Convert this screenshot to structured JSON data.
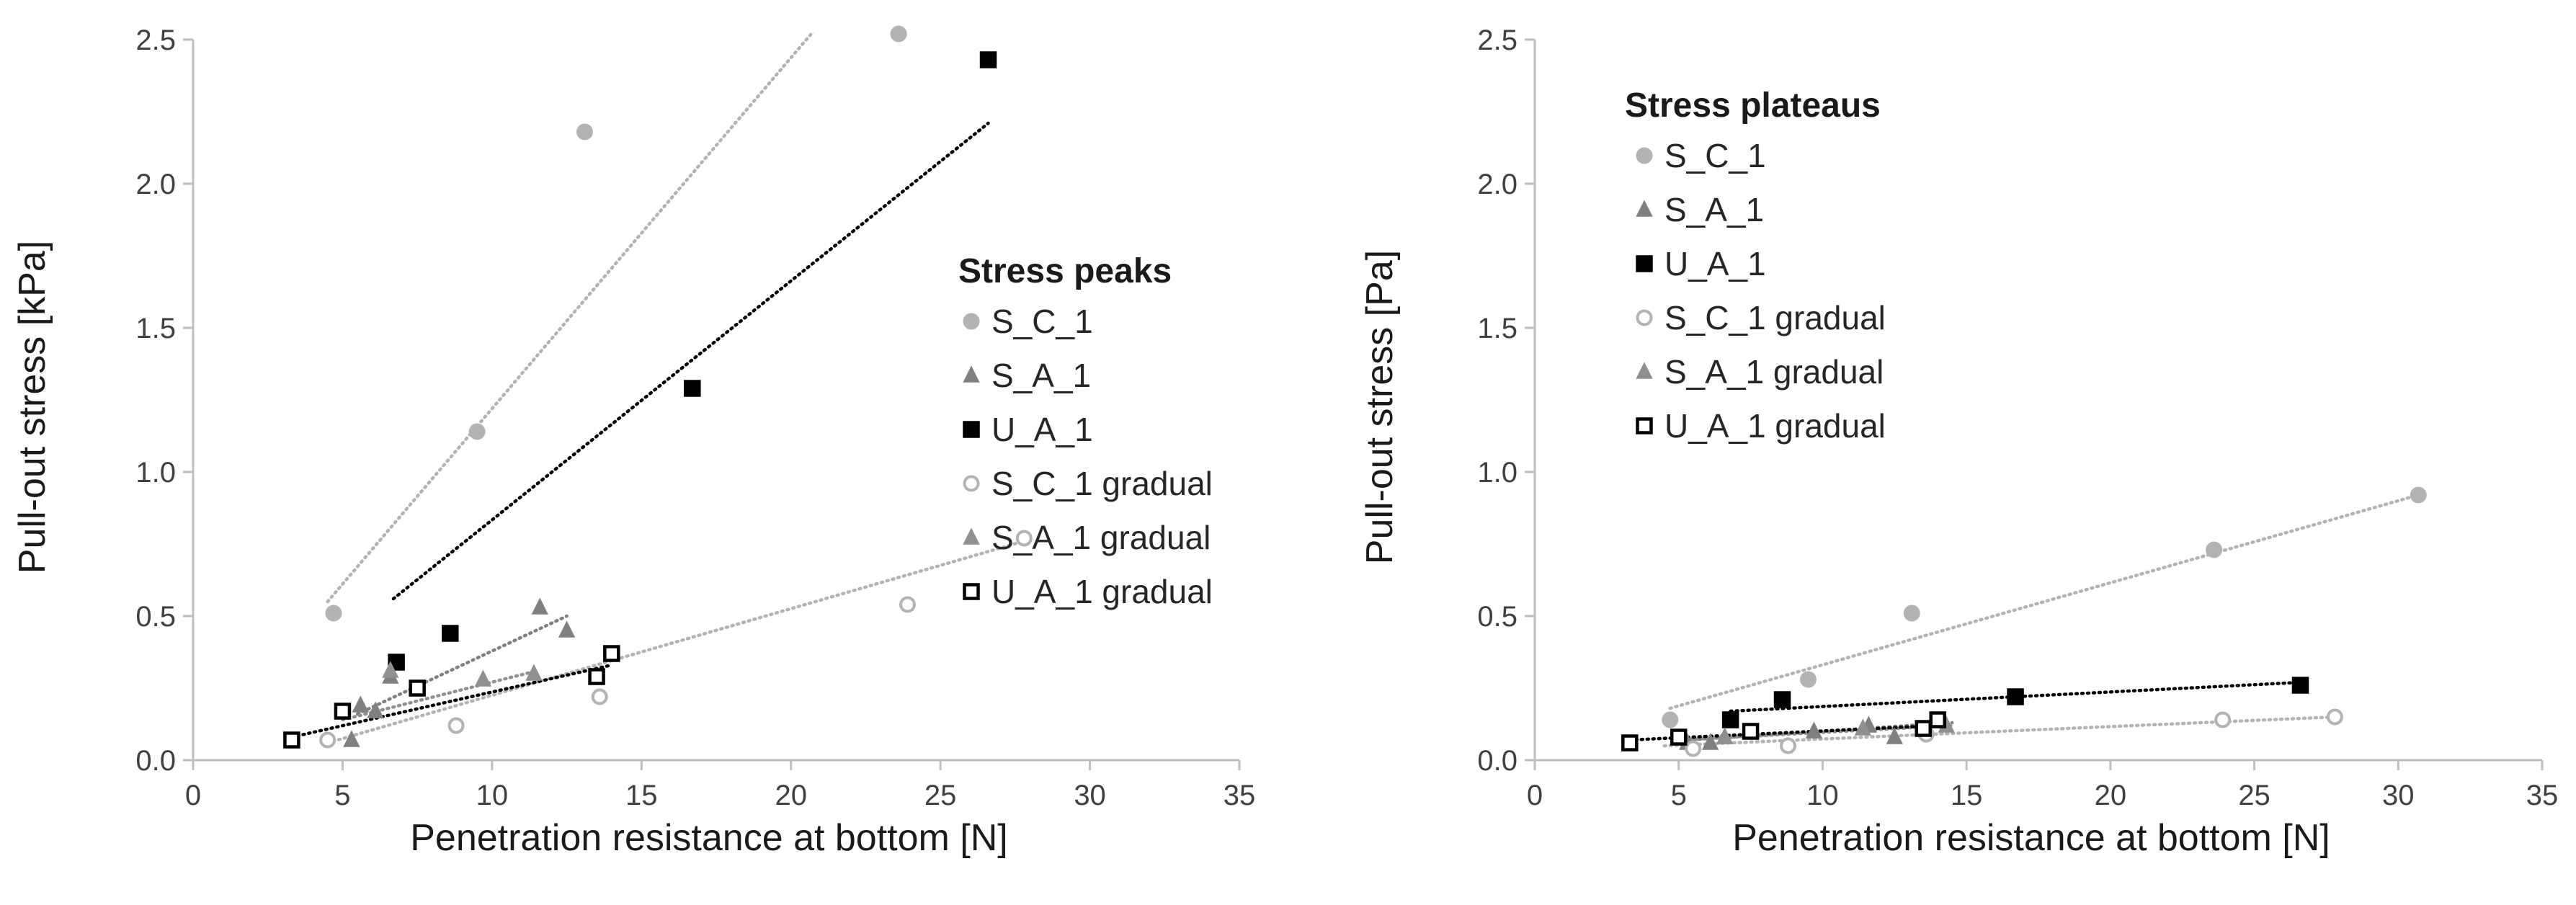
{
  "chart_data": [
    {
      "type": "scatter",
      "title": "Stress peaks",
      "xlabel": "Penetration resistance at bottom [N]",
      "ylabel": "Pull-out stress [kPa]",
      "xlim": [
        0,
        35
      ],
      "ylim": [
        0,
        2.5
      ],
      "xticks": [
        "0",
        "5",
        "10",
        "15",
        "20",
        "25",
        "30",
        "35"
      ],
      "yticks": [
        "0.0",
        "0.5",
        "1.0",
        "1.5",
        "2.0",
        "2.5"
      ],
      "legend_position": "right",
      "series": [
        {
          "name": "S_C_1",
          "marker": "circle",
          "fill": "#b3b3b3",
          "stroke": "#b3b3b3",
          "x": [
            4.7,
            9.5,
            13.1,
            23.6
          ],
          "y": [
            0.51,
            1.14,
            2.18,
            2.52
          ],
          "trend": {
            "x": [
              4.5,
              21.5
            ],
            "y": [
              0.55,
              2.62
            ],
            "color": "#b3b3b3"
          }
        },
        {
          "name": "S_A_1",
          "marker": "triangle",
          "fill": "#808080",
          "stroke": "#808080",
          "x": [
            5.3,
            5.6,
            6.1,
            6.6,
            11.6,
            12.5
          ],
          "y": [
            0.07,
            0.19,
            0.17,
            0.29,
            0.53,
            0.45
          ],
          "trend": {
            "x": [
              5.5,
              12.5
            ],
            "y": [
              0.16,
              0.5
            ],
            "color": "#808080"
          }
        },
        {
          "name": "U_A_1",
          "marker": "square",
          "fill": "#000000",
          "stroke": "#000000",
          "x": [
            6.8,
            8.6,
            16.7,
            26.6
          ],
          "y": [
            0.34,
            0.44,
            1.29,
            2.43
          ],
          "trend": {
            "x": [
              6.7,
              26.6
            ],
            "y": [
              0.56,
              2.21
            ],
            "color": "#000000"
          }
        },
        {
          "name": "S_C_1 gradual",
          "marker": "circle-open",
          "fill": "#ffffff",
          "stroke": "#b3b3b3",
          "x": [
            4.5,
            8.8,
            13.6,
            23.9,
            27.8
          ],
          "y": [
            0.07,
            0.12,
            0.22,
            0.54,
            0.77
          ],
          "trend": {
            "x": [
              4.5,
              27.8
            ],
            "y": [
              0.06,
              0.76
            ],
            "color": "#b3b3b3"
          }
        },
        {
          "name": "S_A_1 gradual",
          "marker": "triangle",
          "fill": "#909090",
          "stroke": "#909090",
          "x": [
            6.6,
            9.7,
            11.4
          ],
          "y": [
            0.31,
            0.28,
            0.3
          ],
          "trend": {
            "x": [
              5.0,
              11.5
            ],
            "y": [
              0.14,
              0.31
            ],
            "color": "#909090"
          }
        },
        {
          "name": "U_A_1 gradual",
          "marker": "square-open",
          "fill": "#ffffff",
          "stroke": "#000000",
          "x": [
            3.3,
            5.0,
            7.5,
            13.5,
            14.0
          ],
          "y": [
            0.07,
            0.17,
            0.25,
            0.29,
            0.37
          ],
          "trend": {
            "x": [
              3.3,
              14.0
            ],
            "y": [
              0.08,
              0.33
            ],
            "color": "#000000"
          }
        }
      ]
    },
    {
      "type": "scatter",
      "title": "Stress plateaus",
      "xlabel": "Penetration resistance at bottom [N]",
      "ylabel": "Pull-out stress [Pa]",
      "xlim": [
        0,
        35
      ],
      "ylim": [
        0,
        2.5
      ],
      "xticks": [
        "0",
        "5",
        "10",
        "15",
        "20",
        "25",
        "30",
        "35"
      ],
      "yticks": [
        "0.0",
        "0.5",
        "1.0",
        "1.5",
        "2.0",
        "2.5"
      ],
      "legend_position": "top-left",
      "series": [
        {
          "name": "S_C_1",
          "marker": "circle",
          "fill": "#b3b3b3",
          "stroke": "#b3b3b3",
          "x": [
            4.7,
            9.5,
            13.1,
            23.6,
            30.7
          ],
          "y": [
            0.14,
            0.28,
            0.51,
            0.73,
            0.92
          ],
          "trend": {
            "x": [
              4.7,
              30.7
            ],
            "y": [
              0.18,
              0.92
            ],
            "color": "#b3b3b3"
          }
        },
        {
          "name": "S_A_1",
          "marker": "triangle",
          "fill": "#808080",
          "stroke": "#808080",
          "x": [
            5.3,
            6.1,
            6.6,
            9.7,
            11.6,
            12.5
          ],
          "y": [
            0.06,
            0.06,
            0.08,
            0.1,
            0.12,
            0.08
          ],
          "trend": {
            "x": [
              5.3,
              14.5
            ],
            "y": [
              0.07,
              0.13
            ],
            "color": "#808080"
          }
        },
        {
          "name": "U_A_1",
          "marker": "square",
          "fill": "#000000",
          "stroke": "#000000",
          "x": [
            6.8,
            8.6,
            16.7,
            26.6
          ],
          "y": [
            0.14,
            0.21,
            0.22,
            0.26
          ],
          "trend": {
            "x": [
              6.8,
              26.6
            ],
            "y": [
              0.17,
              0.27
            ],
            "color": "#000000"
          }
        },
        {
          "name": "S_C_1 gradual",
          "marker": "circle-open",
          "fill": "#ffffff",
          "stroke": "#b3b3b3",
          "x": [
            5.5,
            8.8,
            13.6,
            23.9,
            27.8
          ],
          "y": [
            0.04,
            0.05,
            0.09,
            0.14,
            0.15
          ],
          "trend": {
            "x": [
              4.5,
              27.8
            ],
            "y": [
              0.05,
              0.15
            ],
            "color": "#b3b3b3"
          }
        },
        {
          "name": "S_A_1 gradual",
          "marker": "triangle",
          "fill": "#909090",
          "stroke": "#909090",
          "x": [
            6.6,
            11.4,
            14.3
          ],
          "y": [
            0.08,
            0.11,
            0.12
          ],
          "trend": {
            "x": [
              5.0,
              14.5
            ],
            "y": [
              0.07,
              0.12
            ],
            "color": "#909090"
          }
        },
        {
          "name": "U_A_1 gradual",
          "marker": "square-open",
          "fill": "#ffffff",
          "stroke": "#000000",
          "x": [
            3.3,
            5.0,
            7.5,
            13.5,
            14.0
          ],
          "y": [
            0.06,
            0.08,
            0.1,
            0.11,
            0.14
          ],
          "trend": {
            "x": [
              3.3,
              14.0
            ],
            "y": [
              0.07,
              0.12
            ],
            "color": "#000000"
          }
        }
      ]
    }
  ]
}
